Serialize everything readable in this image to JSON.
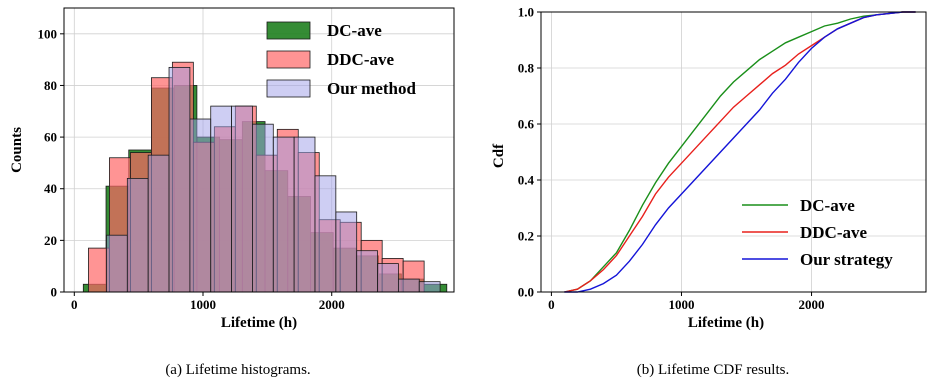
{
  "figure": {
    "captions": [
      "(a)  Lifetime histograms.",
      "(b)  Lifetime CDF results."
    ]
  },
  "chart_data": [
    {
      "type": "histogram",
      "xlabel": "Lifetime (h)",
      "ylabel": "Counts",
      "xlim": [
        -80,
        2950
      ],
      "ylim": [
        0,
        110
      ],
      "xticks": [
        0,
        1000,
        2000
      ],
      "yticks": [
        0,
        20,
        40,
        60,
        80,
        100
      ],
      "grid": true,
      "legend_position": "top-right",
      "series": [
        {
          "name": "DC-ave",
          "color": "#1f7f1f",
          "fill_opacity": 0.9,
          "bin_start": 70,
          "bin_width": 176.5,
          "counts": [
            3,
            41,
            55,
            79,
            80,
            60,
            59,
            66,
            47,
            37,
            23,
            17,
            14,
            7,
            5,
            3
          ]
        },
        {
          "name": "DDC-ave",
          "color": "#ff6666",
          "fill_opacity": 0.7,
          "bin_start": 110,
          "bin_width": 163,
          "counts": [
            17,
            52,
            54,
            83,
            89,
            58,
            64,
            72,
            53,
            63,
            54,
            28,
            27,
            20,
            13,
            12
          ]
        },
        {
          "name": "Our method",
          "color": "#9d9de8",
          "fill_opacity": 0.5,
          "bin_start": 250,
          "bin_width": 162,
          "counts": [
            22,
            44,
            53,
            87,
            67,
            72,
            72,
            65,
            60,
            60,
            45,
            31,
            16,
            11,
            5,
            4
          ]
        }
      ]
    },
    {
      "type": "line",
      "xlabel": "Lifetime (h)",
      "ylabel": "Cdf",
      "xlim": [
        -80,
        2880
      ],
      "ylim": [
        0,
        1
      ],
      "xticks": [
        0,
        1000,
        2000
      ],
      "yticks": [
        0.0,
        0.2,
        0.4,
        0.6,
        0.8,
        1.0
      ],
      "grid": true,
      "legend_position": "bottom-right",
      "series": [
        {
          "name": "DC-ave",
          "color": "#1a8f1a",
          "x": [
            100,
            200,
            300,
            400,
            500,
            600,
            700,
            800,
            900,
            1000,
            1100,
            1200,
            1300,
            1400,
            1500,
            1600,
            1700,
            1800,
            1900,
            2000,
            2100,
            2200,
            2300,
            2400,
            2500,
            2600,
            2700,
            2800
          ],
          "y": [
            0.0,
            0.01,
            0.04,
            0.09,
            0.14,
            0.22,
            0.31,
            0.39,
            0.46,
            0.52,
            0.58,
            0.64,
            0.7,
            0.75,
            0.79,
            0.83,
            0.86,
            0.89,
            0.91,
            0.93,
            0.95,
            0.96,
            0.975,
            0.985,
            0.99,
            0.995,
            1.0,
            1.0
          ]
        },
        {
          "name": "DDC-ave",
          "color": "#e8201c",
          "x": [
            100,
            200,
            300,
            400,
            500,
            600,
            700,
            800,
            900,
            1000,
            1100,
            1200,
            1300,
            1400,
            1500,
            1600,
            1700,
            1800,
            1900,
            2000,
            2100,
            2200,
            2300,
            2400,
            2500,
            2600,
            2700,
            2800
          ],
          "y": [
            0.0,
            0.01,
            0.04,
            0.08,
            0.13,
            0.2,
            0.27,
            0.35,
            0.41,
            0.46,
            0.51,
            0.56,
            0.61,
            0.66,
            0.7,
            0.74,
            0.78,
            0.81,
            0.85,
            0.88,
            0.91,
            0.94,
            0.96,
            0.98,
            0.99,
            0.995,
            1.0,
            1.0
          ]
        },
        {
          "name": "Our strategy",
          "color": "#1414d8",
          "x": [
            100,
            200,
            300,
            400,
            500,
            600,
            700,
            800,
            900,
            1000,
            1100,
            1200,
            1300,
            1400,
            1500,
            1600,
            1700,
            1800,
            1900,
            2000,
            2100,
            2200,
            2300,
            2400,
            2500,
            2600,
            2700,
            2800
          ],
          "y": [
            0.0,
            0.0,
            0.01,
            0.03,
            0.06,
            0.11,
            0.17,
            0.24,
            0.3,
            0.35,
            0.4,
            0.45,
            0.5,
            0.55,
            0.6,
            0.65,
            0.71,
            0.76,
            0.82,
            0.87,
            0.91,
            0.94,
            0.96,
            0.98,
            0.99,
            0.995,
            1.0,
            1.0
          ]
        }
      ]
    }
  ]
}
